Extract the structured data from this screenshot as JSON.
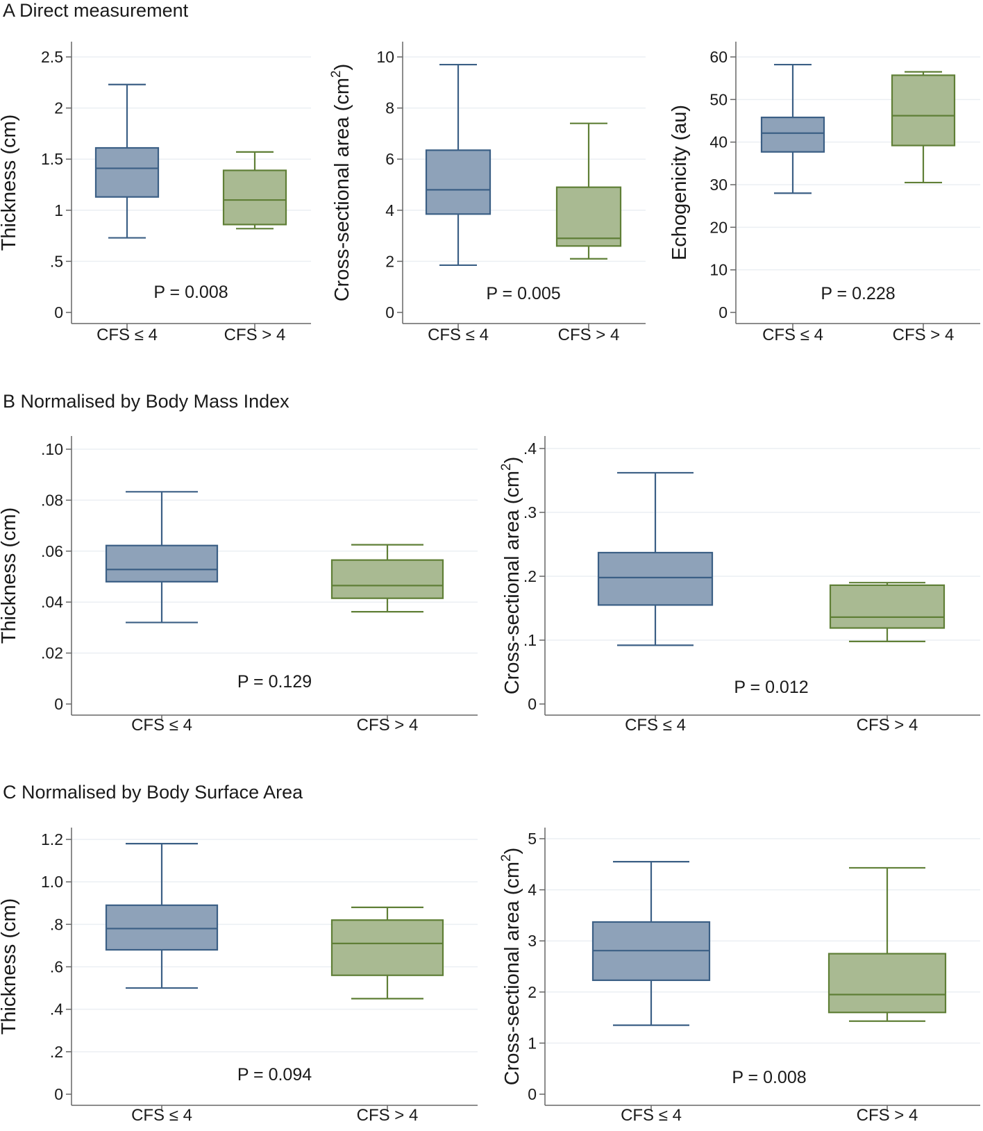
{
  "sections": [
    {
      "title": "A Direct measurement"
    },
    {
      "title": "B Normalised by Body Mass Index"
    },
    {
      "title": "C Normalised by Body Surface Area"
    }
  ],
  "colors": {
    "group1_fill": "#8ea2b9",
    "group1_stroke": "#3b5f85",
    "group2_fill": "#a9ba92",
    "group2_stroke": "#5f7f36",
    "axis": "#666666",
    "grid": "#ebeff3"
  },
  "chart_data": [
    {
      "type": "box",
      "section": "A Direct measurement",
      "ylabel": "Thickness (cm)",
      "ylabel_sup": "",
      "ylim": [
        0,
        2.5
      ],
      "yticks": [
        {
          "v": 0,
          "label": "0"
        },
        {
          "v": 0.5,
          "label": ".5"
        },
        {
          "v": 1,
          "label": "1"
        },
        {
          "v": 1.5,
          "label": "1.5"
        },
        {
          "v": 2,
          "label": "2"
        },
        {
          "v": 2.5,
          "label": "2.5"
        }
      ],
      "categories": [
        "CFS ≤ 4",
        "CFS > 4"
      ],
      "boxes": [
        {
          "group": "CFS ≤ 4",
          "whisker_low": 0.73,
          "q1": 1.13,
          "median": 1.41,
          "q3": 1.61,
          "whisker_high": 2.23
        },
        {
          "group": "CFS > 4",
          "whisker_low": 0.82,
          "q1": 0.86,
          "median": 1.1,
          "q3": 1.39,
          "whisker_high": 1.57
        }
      ],
      "annotation": "P = 0.008"
    },
    {
      "type": "box",
      "section": "A Direct measurement",
      "ylabel": "Cross-sectional area (cm",
      "ylabel_sup": "2",
      "ylabel_tail": ")",
      "ylim": [
        0,
        10
      ],
      "yticks": [
        {
          "v": 0,
          "label": "0"
        },
        {
          "v": 2,
          "label": "2"
        },
        {
          "v": 4,
          "label": "4"
        },
        {
          "v": 6,
          "label": "6"
        },
        {
          "v": 8,
          "label": "8"
        },
        {
          "v": 10,
          "label": "10"
        }
      ],
      "categories": [
        "CFS ≤ 4",
        "CFS > 4"
      ],
      "boxes": [
        {
          "group": "CFS ≤ 4",
          "whisker_low": 1.85,
          "q1": 3.85,
          "median": 4.8,
          "q3": 6.35,
          "whisker_high": 9.7
        },
        {
          "group": "CFS > 4",
          "whisker_low": 2.1,
          "q1": 2.6,
          "median": 2.9,
          "q3": 4.9,
          "whisker_high": 7.4
        }
      ],
      "annotation": "P = 0.005"
    },
    {
      "type": "box",
      "section": "A Direct measurement",
      "ylabel": "Echogenicity (au)",
      "ylabel_sup": "",
      "ylim": [
        0,
        60
      ],
      "yticks": [
        {
          "v": 0,
          "label": "0"
        },
        {
          "v": 10,
          "label": "10"
        },
        {
          "v": 20,
          "label": "20"
        },
        {
          "v": 30,
          "label": "30"
        },
        {
          "v": 40,
          "label": "40"
        },
        {
          "v": 50,
          "label": "50"
        },
        {
          "v": 60,
          "label": "60"
        }
      ],
      "categories": [
        "CFS ≤ 4",
        "CFS > 4"
      ],
      "boxes": [
        {
          "group": "CFS ≤ 4",
          "whisker_low": 28,
          "q1": 37.7,
          "median": 42.1,
          "q3": 45.8,
          "whisker_high": 58.2
        },
        {
          "group": "CFS > 4",
          "whisker_low": 30.5,
          "q1": 39.2,
          "median": 46.2,
          "q3": 55.7,
          "whisker_high": 56.5
        }
      ],
      "annotation": "P = 0.228"
    },
    {
      "type": "box",
      "section": "B Normalised by Body Mass Index",
      "ylabel": "Thickness (cm)",
      "ylabel_sup": "",
      "ylim": [
        0,
        0.1
      ],
      "yticks": [
        {
          "v": 0,
          "label": "0"
        },
        {
          "v": 0.02,
          "label": ".02"
        },
        {
          "v": 0.04,
          "label": ".04"
        },
        {
          "v": 0.06,
          "label": ".06"
        },
        {
          "v": 0.08,
          "label": ".08"
        },
        {
          "v": 0.1,
          "label": ".10"
        }
      ],
      "categories": [
        "CFS ≤ 4",
        "CFS > 4"
      ],
      "boxes": [
        {
          "group": "CFS ≤ 4",
          "whisker_low": 0.032,
          "q1": 0.048,
          "median": 0.0528,
          "q3": 0.0622,
          "whisker_high": 0.0833
        },
        {
          "group": "CFS > 4",
          "whisker_low": 0.0362,
          "q1": 0.0415,
          "median": 0.0465,
          "q3": 0.0565,
          "whisker_high": 0.0625
        }
      ],
      "annotation": "P = 0.129"
    },
    {
      "type": "box",
      "section": "B Normalised by Body Mass Index",
      "ylabel": "Cross-sectional area (cm",
      "ylabel_sup": "2",
      "ylabel_tail": ")",
      "ylim": [
        0,
        0.4
      ],
      "yticks": [
        {
          "v": 0,
          "label": "0"
        },
        {
          "v": 0.1,
          "label": ".1"
        },
        {
          "v": 0.2,
          "label": ".2"
        },
        {
          "v": 0.3,
          "label": ".3"
        },
        {
          "v": 0.4,
          "label": ".4"
        }
      ],
      "categories": [
        "CFS ≤ 4",
        "CFS > 4"
      ],
      "boxes": [
        {
          "group": "CFS ≤ 4",
          "whisker_low": 0.092,
          "q1": 0.155,
          "median": 0.198,
          "q3": 0.237,
          "whisker_high": 0.362
        },
        {
          "group": "CFS > 4",
          "whisker_low": 0.098,
          "q1": 0.119,
          "median": 0.136,
          "q3": 0.186,
          "whisker_high": 0.19
        }
      ],
      "annotation": "P = 0.012"
    },
    {
      "type": "box",
      "section": "C Normalised by Body Surface Area",
      "ylabel": "Thickness (cm)",
      "ylabel_sup": "",
      "ylim": [
        0,
        1.2
      ],
      "yticks": [
        {
          "v": 0,
          "label": "0"
        },
        {
          "v": 0.2,
          "label": ".2"
        },
        {
          "v": 0.4,
          "label": ".4"
        },
        {
          "v": 0.6,
          "label": ".6"
        },
        {
          "v": 0.8,
          "label": ".8"
        },
        {
          "v": 1.0,
          "label": "1.0"
        },
        {
          "v": 1.2,
          "label": "1.2"
        }
      ],
      "categories": [
        "CFS ≤ 4",
        "CFS > 4"
      ],
      "boxes": [
        {
          "group": "CFS ≤ 4",
          "whisker_low": 0.5,
          "q1": 0.68,
          "median": 0.78,
          "q3": 0.89,
          "whisker_high": 1.18
        },
        {
          "group": "CFS > 4",
          "whisker_low": 0.45,
          "q1": 0.56,
          "median": 0.71,
          "q3": 0.82,
          "whisker_high": 0.88
        }
      ],
      "annotation": "P = 0.094"
    },
    {
      "type": "box",
      "section": "C Normalised by Body Surface Area",
      "ylabel": "Cross-sectional area (cm",
      "ylabel_sup": "2",
      "ylabel_tail": ")",
      "ylim": [
        0,
        5
      ],
      "yticks": [
        {
          "v": 0,
          "label": "0"
        },
        {
          "v": 1,
          "label": "1"
        },
        {
          "v": 2,
          "label": "2"
        },
        {
          "v": 3,
          "label": "3"
        },
        {
          "v": 4,
          "label": "4"
        },
        {
          "v": 5,
          "label": "5"
        }
      ],
      "categories": [
        "CFS ≤ 4",
        "CFS > 4"
      ],
      "boxes": [
        {
          "group": "CFS ≤ 4",
          "whisker_low": 1.35,
          "q1": 2.23,
          "median": 2.81,
          "q3": 3.37,
          "whisker_high": 4.55
        },
        {
          "group": "CFS > 4",
          "whisker_low": 1.43,
          "q1": 1.6,
          "median": 1.95,
          "q3": 2.75,
          "whisker_high": 4.43
        }
      ],
      "annotation": "P = 0.008"
    }
  ]
}
